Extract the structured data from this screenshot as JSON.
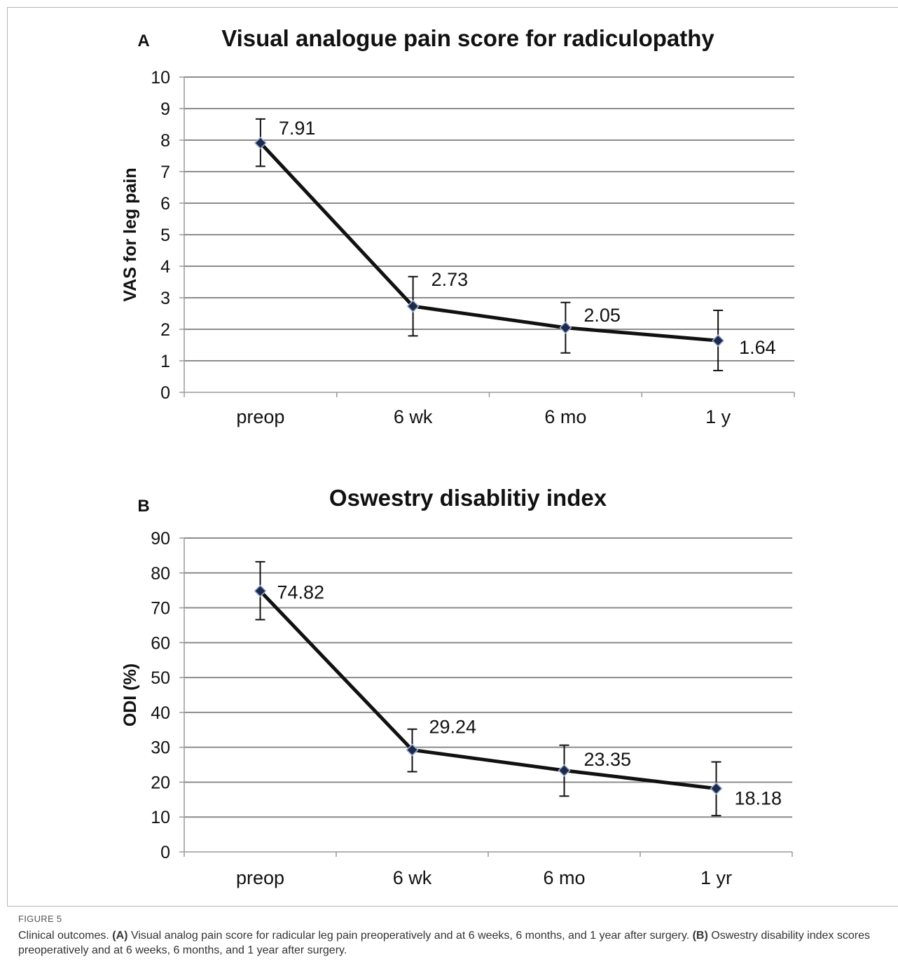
{
  "chart_data": [
    {
      "id": "A",
      "type": "line",
      "panel_label": "A",
      "title": "Visual analogue pain score for radiculopathy",
      "xlabel": "",
      "ylabel": "VAS for leg pain",
      "categories": [
        "preop",
        "6 wk",
        "6 mo",
        "1 y"
      ],
      "ylim": [
        0,
        10
      ],
      "yticks": [
        0,
        1,
        2,
        3,
        4,
        5,
        6,
        7,
        8,
        9,
        10
      ],
      "grid": true,
      "legend": "none",
      "series": [
        {
          "values": [
            7.91,
            2.73,
            2.05,
            1.64
          ],
          "error_low": [
            7.17,
            1.79,
            1.25,
            0.69
          ],
          "error_high": [
            8.67,
            3.67,
            2.85,
            2.6
          ],
          "data_labels": [
            "7.91",
            "2.73",
            "2.05",
            "1.64"
          ]
        }
      ]
    },
    {
      "id": "B",
      "type": "line",
      "panel_label": "B",
      "title": "Oswestry disablitiy index",
      "xlabel": "",
      "ylabel": "ODI (%)",
      "categories": [
        "preop",
        "6 wk",
        "6 mo",
        "1 yr"
      ],
      "ylim": [
        0,
        90
      ],
      "yticks": [
        0,
        10,
        20,
        30,
        40,
        50,
        60,
        70,
        80,
        90
      ],
      "grid": true,
      "legend": "none",
      "series": [
        {
          "values": [
            74.82,
            29.24,
            23.35,
            18.18
          ],
          "error_low": [
            66.6,
            23.0,
            16.0,
            10.4
          ],
          "error_high": [
            83.2,
            35.2,
            30.6,
            25.8
          ],
          "data_labels": [
            "74.82",
            "29.24",
            "23.35",
            "18.18"
          ]
        }
      ]
    }
  ],
  "caption": {
    "figure_label": "FIGURE 5",
    "intro": "Clinical outcomes. ",
    "part_a_tag": "(A)",
    "part_a_text": " Visual analog pain score for radicular leg pain preoperatively and at 6 weeks, 6 months, and 1 year after surgery. ",
    "part_b_tag": "(B)",
    "part_b_text": " Oswestry disability index scores preoperatively and at 6 weeks, 6 months, and 1 year after surgery."
  },
  "colors": {
    "line": "#111111",
    "grid": "#8c8c8c",
    "axis": "#9a9a9a",
    "marker_fill": "#1e2a4a",
    "marker_stroke": "#9fb4d8",
    "text": "#111111"
  }
}
